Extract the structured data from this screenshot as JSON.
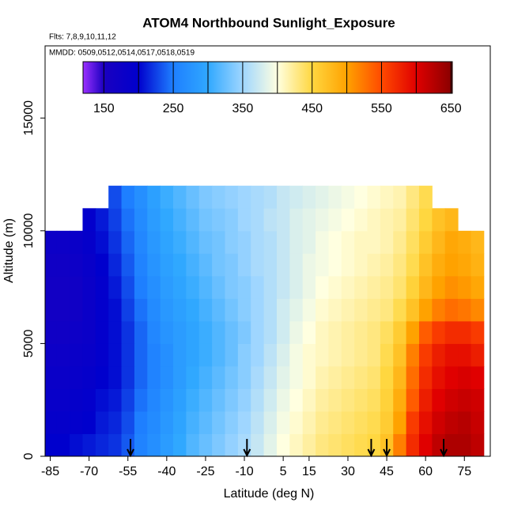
{
  "chart_data": {
    "type": "heatmap",
    "title": "ATOM4 Northbound Sunlight_Exposure",
    "subtitle_lines": [
      "Flts: 7,8,9,10,11,12",
      "MMDD: 0509,0512,0514,0517,0518,0519"
    ],
    "x_label": "Latitude (deg N)",
    "y_label": "Altitude (m)",
    "xlim": [
      -87,
      85
    ],
    "ylim": [
      0,
      18200
    ],
    "xticks": [
      -85,
      -70,
      -55,
      -40,
      -25,
      -10,
      5,
      15,
      30,
      45,
      60,
      75
    ],
    "yticks": [
      0,
      5000,
      10000,
      15000
    ],
    "x": [
      -85,
      -80,
      -75,
      -70,
      -65,
      -60,
      -55,
      -50,
      -45,
      -40,
      -35,
      -30,
      -25,
      -20,
      -15,
      -10,
      -5,
      0,
      5,
      10,
      15,
      20,
      25,
      30,
      35,
      40,
      45,
      50,
      55,
      60,
      65,
      70,
      75,
      80
    ],
    "y": [
      500,
      1500,
      2500,
      3500,
      4500,
      5500,
      6500,
      7500,
      8500,
      9500,
      10500,
      11500
    ],
    "z": [
      [
        200,
        200,
        205,
        210,
        215,
        220,
        235,
        255,
        270,
        285,
        300,
        315,
        325,
        335,
        345,
        355,
        370,
        385,
        400,
        410,
        420,
        430,
        435,
        440,
        445,
        450,
        470,
        520,
        570,
        600,
        620,
        630,
        630,
        620
      ],
      [
        190,
        190,
        195,
        200,
        210,
        215,
        230,
        250,
        265,
        280,
        295,
        310,
        320,
        330,
        340,
        350,
        365,
        380,
        395,
        405,
        415,
        425,
        430,
        435,
        440,
        445,
        460,
        500,
        560,
        590,
        610,
        620,
        625,
        615
      ],
      [
        185,
        185,
        190,
        195,
        205,
        210,
        225,
        245,
        260,
        275,
        290,
        305,
        315,
        325,
        335,
        345,
        360,
        375,
        390,
        400,
        410,
        420,
        425,
        430,
        435,
        440,
        455,
        490,
        540,
        580,
        600,
        610,
        615,
        610
      ],
      [
        180,
        180,
        185,
        190,
        200,
        205,
        220,
        240,
        255,
        270,
        285,
        300,
        310,
        320,
        330,
        340,
        355,
        370,
        385,
        395,
        405,
        415,
        420,
        425,
        430,
        435,
        450,
        480,
        530,
        570,
        590,
        600,
        605,
        600
      ],
      [
        175,
        175,
        180,
        185,
        195,
        205,
        220,
        240,
        255,
        270,
        285,
        295,
        305,
        315,
        325,
        340,
        350,
        365,
        380,
        395,
        405,
        410,
        415,
        420,
        425,
        430,
        445,
        470,
        520,
        560,
        580,
        590,
        590,
        580
      ],
      [
        170,
        170,
        175,
        180,
        195,
        205,
        220,
        240,
        260,
        275,
        285,
        295,
        305,
        315,
        325,
        335,
        350,
        360,
        375,
        390,
        400,
        410,
        415,
        420,
        425,
        430,
        440,
        460,
        500,
        540,
        560,
        570,
        570,
        560
      ],
      [
        165,
        165,
        170,
        180,
        195,
        205,
        225,
        245,
        265,
        280,
        290,
        300,
        310,
        320,
        330,
        340,
        350,
        360,
        375,
        385,
        395,
        405,
        410,
        415,
        420,
        425,
        430,
        445,
        470,
        500,
        520,
        530,
        525,
        515
      ],
      [
        165,
        165,
        170,
        180,
        195,
        210,
        230,
        250,
        270,
        285,
        295,
        305,
        315,
        325,
        335,
        340,
        350,
        360,
        370,
        380,
        390,
        400,
        405,
        410,
        415,
        420,
        425,
        435,
        455,
        480,
        500,
        510,
        505,
        495
      ],
      [
        170,
        170,
        175,
        185,
        200,
        215,
        235,
        255,
        275,
        290,
        300,
        310,
        320,
        330,
        335,
        345,
        355,
        360,
        370,
        380,
        390,
        395,
        400,
        405,
        410,
        415,
        420,
        430,
        445,
        470,
        490,
        500,
        495,
        485
      ],
      [
        175,
        175,
        180,
        190,
        205,
        220,
        240,
        260,
        280,
        295,
        305,
        315,
        325,
        330,
        340,
        345,
        355,
        360,
        370,
        380,
        385,
        395,
        400,
        405,
        410,
        410,
        415,
        425,
        440,
        460,
        480,
        495,
        490,
        480
      ],
      [
        null,
        null,
        null,
        195,
        210,
        225,
        245,
        265,
        285,
        300,
        310,
        320,
        330,
        335,
        340,
        350,
        355,
        365,
        370,
        380,
        385,
        390,
        395,
        400,
        405,
        410,
        415,
        420,
        435,
        450,
        470,
        480,
        null,
        null
      ],
      [
        null,
        null,
        null,
        null,
        null,
        230,
        250,
        270,
        290,
        305,
        315,
        325,
        335,
        340,
        345,
        350,
        355,
        360,
        370,
        375,
        380,
        385,
        390,
        395,
        400,
        405,
        410,
        415,
        430,
        445,
        null,
        null,
        null,
        null
      ]
    ],
    "colorbar": {
      "lim": [
        120,
        652
      ],
      "ticks": [
        150,
        250,
        350,
        450,
        550,
        650
      ],
      "boundaries": [
        150,
        200,
        250,
        300,
        350,
        400,
        450,
        500,
        550,
        600,
        650
      ],
      "stops": [
        120,
        150,
        200,
        250,
        300,
        350,
        400,
        450,
        500,
        550,
        600,
        650
      ],
      "colors": [
        "#9b30ff",
        "#1a00c0",
        "#0000cd",
        "#1e7fff",
        "#30a8ff",
        "#9fd6ff",
        "#ffffe0",
        "#ffd740",
        "#ffa200",
        "#ff4a00",
        "#e00000",
        "#8b0000"
      ]
    },
    "flight_markers": [
      -54,
      -9,
      39,
      45,
      67
    ]
  }
}
